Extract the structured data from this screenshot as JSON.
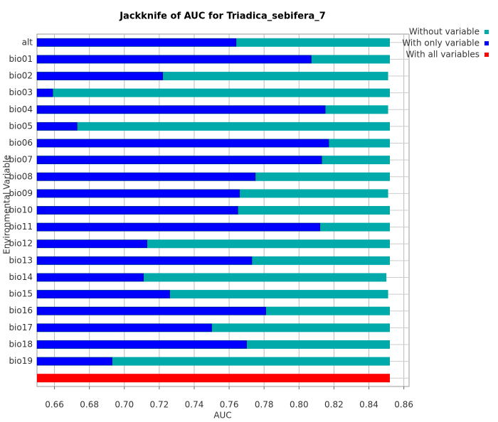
{
  "chart_data": {
    "type": "bar",
    "orientation": "horizontal",
    "title": "Jackknife of AUC for Triadica_sebifera_7",
    "x_label": "AUC",
    "y_label": "Environmental Variable",
    "categories": [
      "alt",
      "bio01",
      "bio02",
      "bio03",
      "bio04",
      "bio05",
      "bio06",
      "bio07",
      "bio08",
      "bio09",
      "bio10",
      "bio11",
      "bio12",
      "bio13",
      "bio14",
      "bio15",
      "bio16",
      "bio17",
      "bio18",
      "bio19",
      null
    ],
    "series": [
      {
        "name": "Without variable",
        "color": "#00aaaa",
        "values": [
          0.852,
          0.852,
          0.851,
          0.852,
          0.851,
          0.852,
          0.852,
          0.852,
          0.852,
          0.851,
          0.852,
          0.852,
          0.852,
          0.852,
          0.85,
          0.851,
          0.852,
          0.852,
          0.852,
          0.852,
          null
        ]
      },
      {
        "name": "With only variable",
        "color": "#0000ff",
        "values": [
          0.764,
          0.807,
          0.722,
          0.659,
          0.815,
          0.673,
          0.817,
          0.813,
          0.775,
          0.766,
          0.765,
          0.812,
          0.713,
          0.773,
          0.711,
          0.726,
          0.781,
          0.75,
          0.77,
          0.693,
          null
        ]
      },
      {
        "name": "With all variables",
        "color": "#ff0000",
        "values": [
          null,
          null,
          null,
          null,
          null,
          null,
          null,
          null,
          null,
          null,
          null,
          null,
          null,
          null,
          null,
          null,
          null,
          null,
          null,
          null,
          0.852
        ]
      }
    ],
    "xlim": [
      0.65,
      0.863
    ],
    "xticks": [
      0.66,
      0.68,
      {
        "value": 0.7,
        "label": "0.70"
      },
      0.72,
      0.74,
      0.76,
      0.78,
      {
        "value": 0.8,
        "label": "0.80"
      },
      0.82,
      0.84,
      0.86
    ],
    "grid": true,
    "legend": "top-right"
  }
}
